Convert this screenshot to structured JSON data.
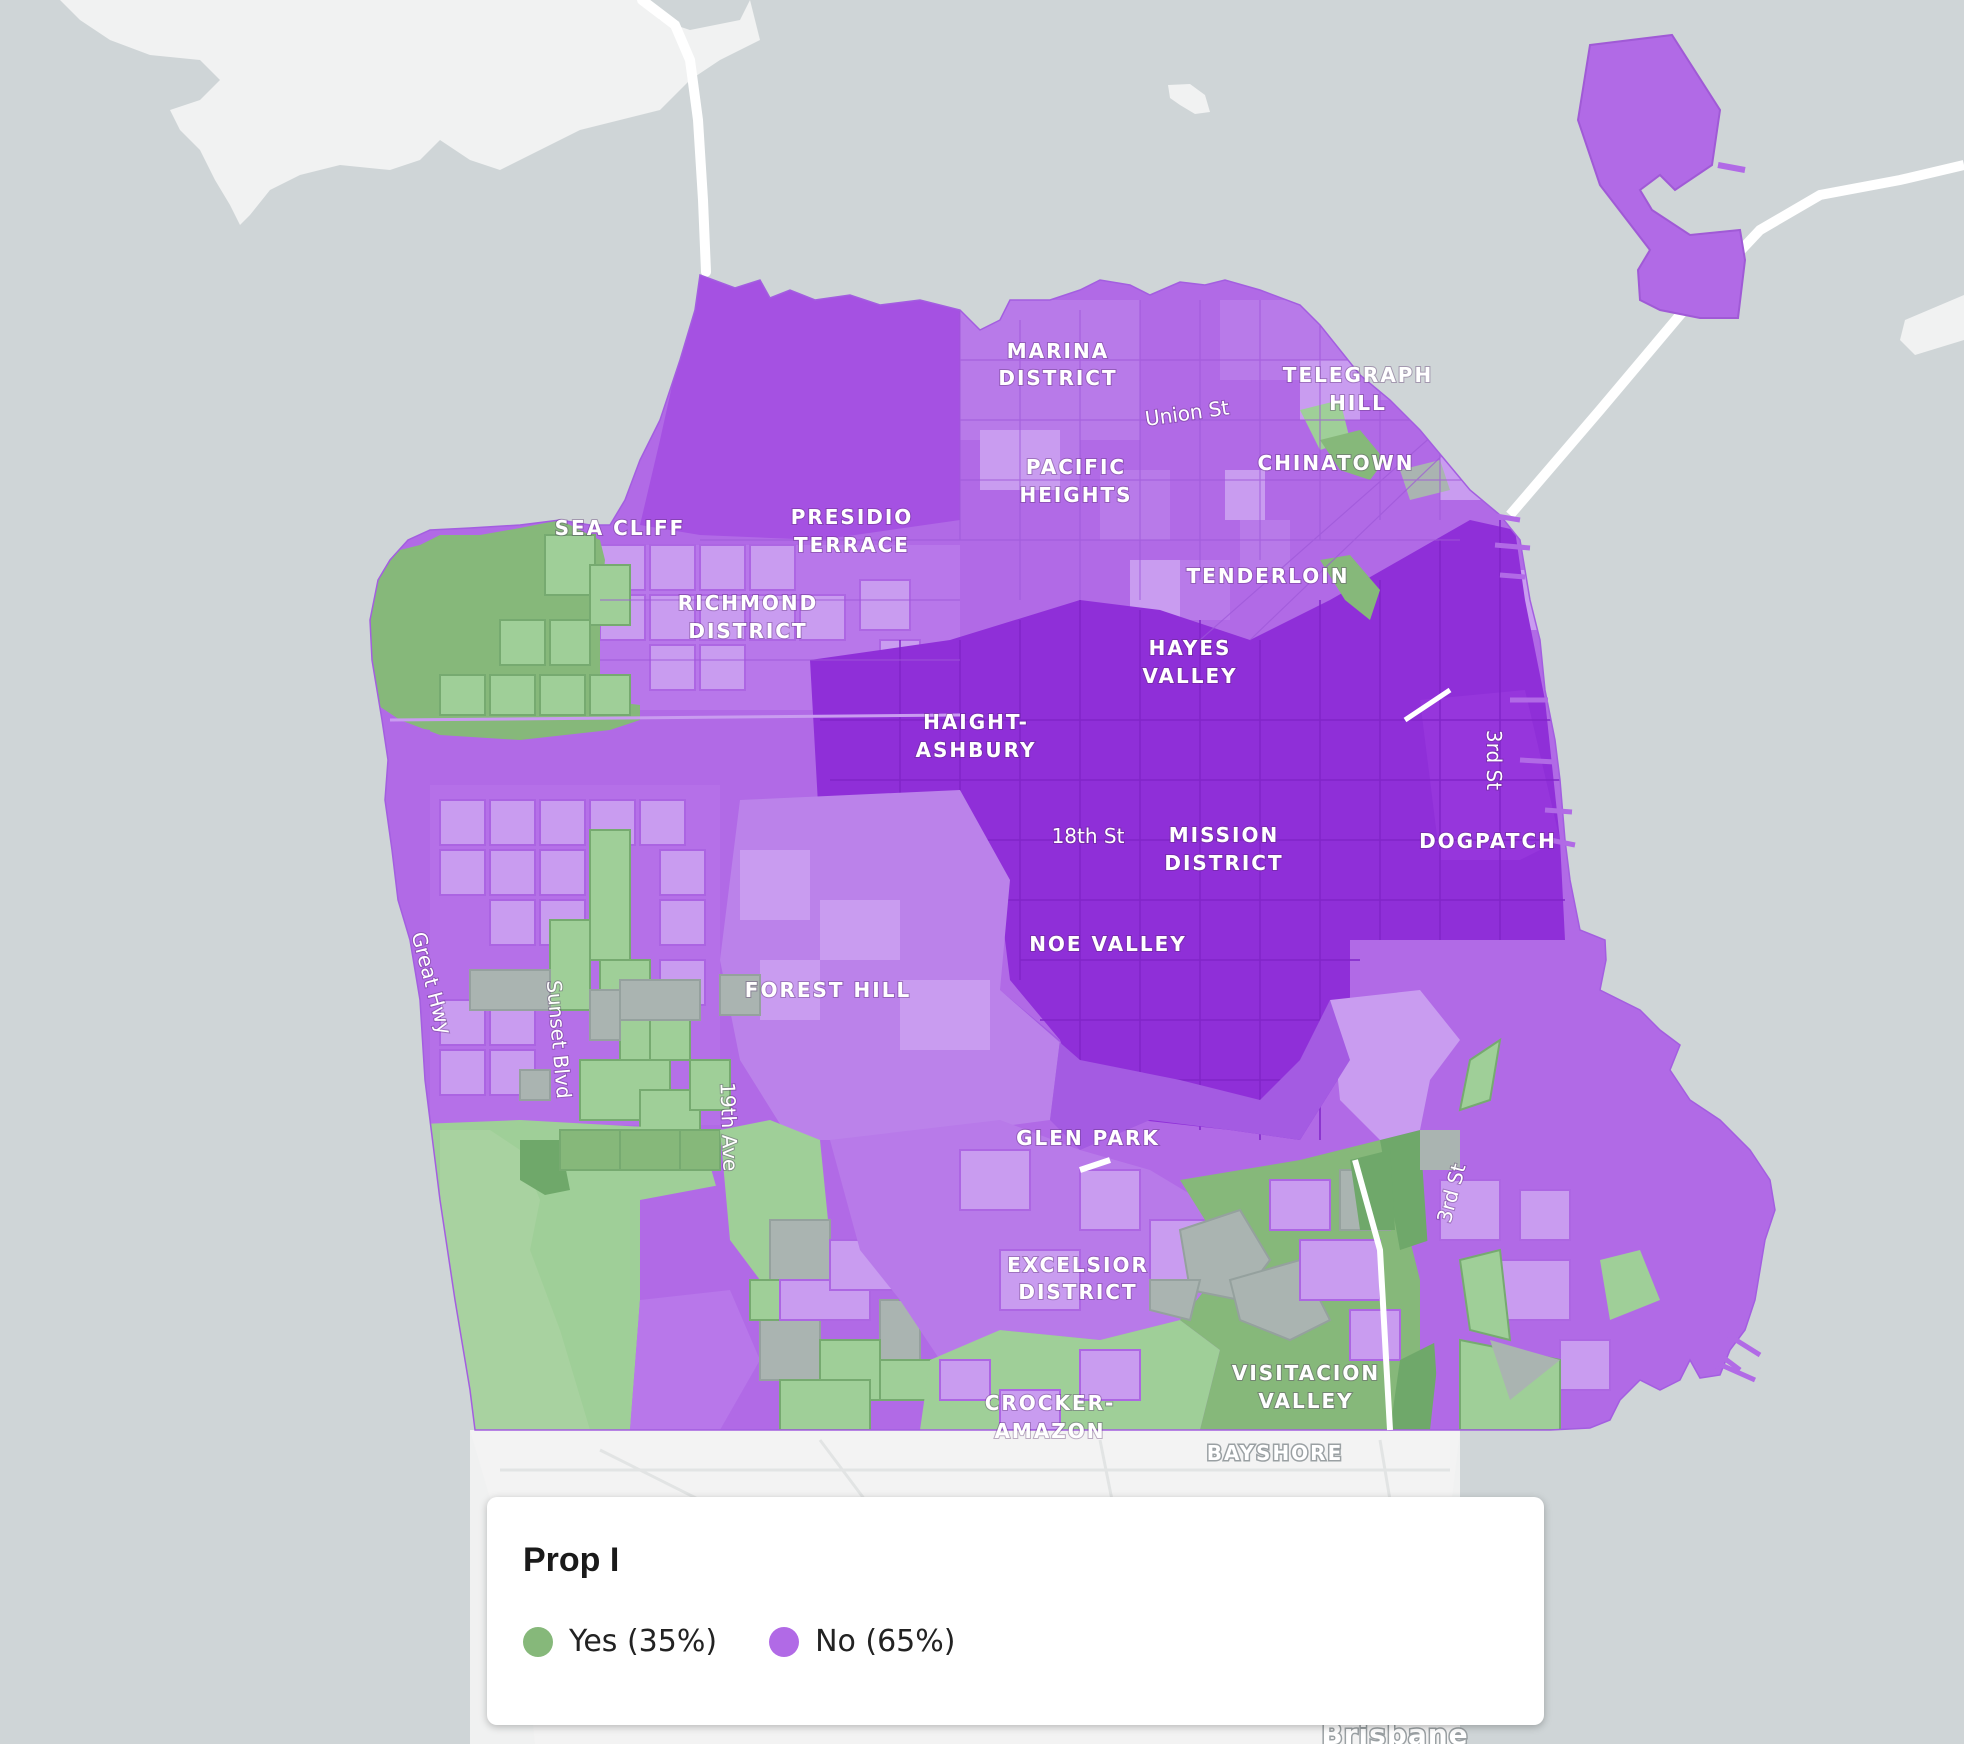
{
  "legend": {
    "title": "Prop I",
    "items": [
      {
        "label": "Yes (35%)",
        "color": "#86b87a"
      },
      {
        "label": "No (65%)",
        "color": "#b16ae6"
      }
    ]
  },
  "neighborhoods": {
    "marina_1": "MARINA",
    "marina_2": "DISTRICT",
    "telegraph_1": "TELEGRAPH",
    "telegraph_2": "HILL",
    "pacific_1": "PACIFIC",
    "pacific_2": "HEIGHTS",
    "chinatown": "CHINATOWN",
    "seacliff": "SEA CLIFF",
    "presidio_1": "PRESIDIO",
    "presidio_2": "TERRACE",
    "tenderloin": "TENDERLOIN",
    "richmond_1": "RICHMOND",
    "richmond_2": "DISTRICT",
    "hayes_1": "HAYES",
    "hayes_2": "VALLEY",
    "haight_1": "HAIGHT-",
    "haight_2": "ASHBURY",
    "mission_1": "MISSION",
    "mission_2": "DISTRICT",
    "dogpatch": "DOGPATCH",
    "noe": "NOE VALLEY",
    "forest": "FOREST HILL",
    "glen": "GLEN PARK",
    "excelsior_1": "EXCELSIOR",
    "excelsior_2": "DISTRICT",
    "visitacion_1": "VISITACION",
    "visitacion_2": "VALLEY",
    "crocker_1": "CROCKER-",
    "crocker_2": "AMAZON",
    "bayshore": "BAYSHORE",
    "brisbane": "Brisbane"
  },
  "streets": {
    "union": "Union St",
    "third_north": "3rd St",
    "eighteenth": "18th St",
    "great_hwy": "Great Hwy",
    "sunset": "Sunset Blvd",
    "nineteenth": "19th Ave",
    "third_south": "3rd St"
  },
  "colors": {
    "water": "#cfd5d7",
    "land": "#f2f3f3",
    "no_light": "#c99cf0",
    "no_mid": "#b16ae6",
    "no_dark": "#8f2fd8",
    "yes_light": "#9fcf98",
    "yes_dark": "#6fa86a",
    "tie": "#aab4b1"
  }
}
